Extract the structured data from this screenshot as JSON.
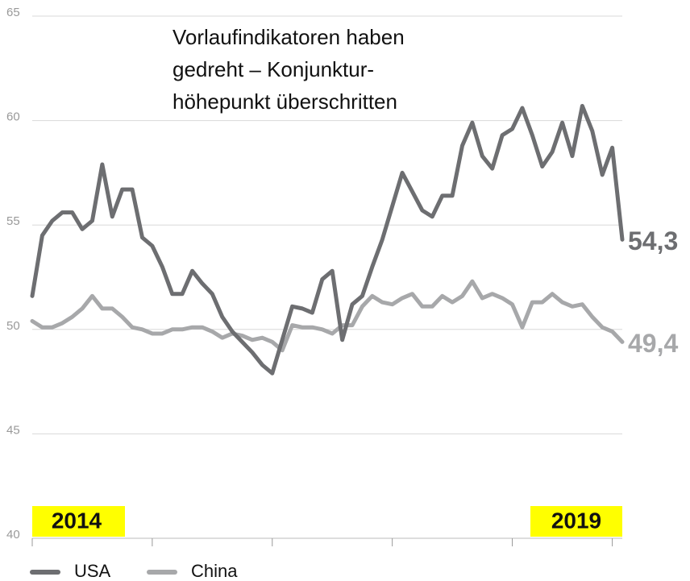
{
  "chart_data": {
    "type": "line",
    "annotation": [
      "Vorlaufindikatoren haben",
      "gedreht – Konjunktur-",
      "höhepunkt überschritten"
    ],
    "period_labels": [
      "2014",
      "2019"
    ],
    "period_color": "#ffff00",
    "x": [
      0,
      1,
      2,
      3,
      4,
      5,
      6,
      7,
      8,
      9,
      10,
      11,
      12,
      13,
      14,
      15,
      16,
      17,
      18,
      19,
      20,
      21,
      22,
      23,
      24,
      25,
      26,
      27,
      28,
      29,
      30,
      31,
      32,
      33,
      34,
      35,
      36,
      37,
      38,
      39,
      40,
      41,
      42,
      43,
      44,
      45,
      46,
      47,
      48,
      49,
      50,
      51,
      52,
      53,
      54,
      55,
      56,
      57,
      58,
      59
    ],
    "xlim": [
      0,
      59
    ],
    "xticks": [
      0,
      12,
      24,
      36,
      48,
      58
    ],
    "ylim": [
      40,
      65
    ],
    "yticks": [
      40,
      45,
      50,
      55,
      60,
      65
    ],
    "grid": true,
    "series": [
      {
        "name": "USA",
        "color": "#6d6e71",
        "end_label": "54,3",
        "values": [
          51.6,
          54.5,
          55.2,
          55.6,
          55.6,
          54.8,
          55.2,
          57.9,
          55.4,
          56.7,
          56.7,
          54.4,
          54.0,
          53.0,
          51.7,
          51.7,
          52.8,
          52.2,
          51.7,
          50.6,
          49.9,
          49.4,
          48.9,
          48.3,
          47.9,
          49.5,
          51.1,
          51.0,
          50.8,
          52.4,
          52.8,
          49.5,
          51.2,
          51.6,
          53.0,
          54.3,
          55.9,
          57.5,
          56.6,
          55.7,
          55.4,
          56.4,
          56.4,
          58.8,
          59.9,
          58.3,
          57.7,
          59.3,
          59.6,
          60.6,
          59.3,
          57.8,
          58.5,
          59.9,
          58.3,
          60.7,
          59.5,
          57.4,
          58.7,
          54.3
        ]
      },
      {
        "name": "China",
        "color": "#a7a8aa",
        "end_label": "49,4",
        "values": [
          50.4,
          50.1,
          50.1,
          50.3,
          50.6,
          51.0,
          51.6,
          51.0,
          51.0,
          50.6,
          50.1,
          50.0,
          49.8,
          49.8,
          50.0,
          50.0,
          50.1,
          50.1,
          49.9,
          49.6,
          49.8,
          49.7,
          49.5,
          49.6,
          49.4,
          49.0,
          50.2,
          50.1,
          50.1,
          50.0,
          49.8,
          50.2,
          50.2,
          51.1,
          51.6,
          51.3,
          51.2,
          51.5,
          51.7,
          51.1,
          51.1,
          51.6,
          51.3,
          51.6,
          52.3,
          51.5,
          51.7,
          51.5,
          51.2,
          50.1,
          51.3,
          51.3,
          51.7,
          51.3,
          51.1,
          51.2,
          50.6,
          50.1,
          49.9,
          49.4
        ]
      }
    ]
  }
}
